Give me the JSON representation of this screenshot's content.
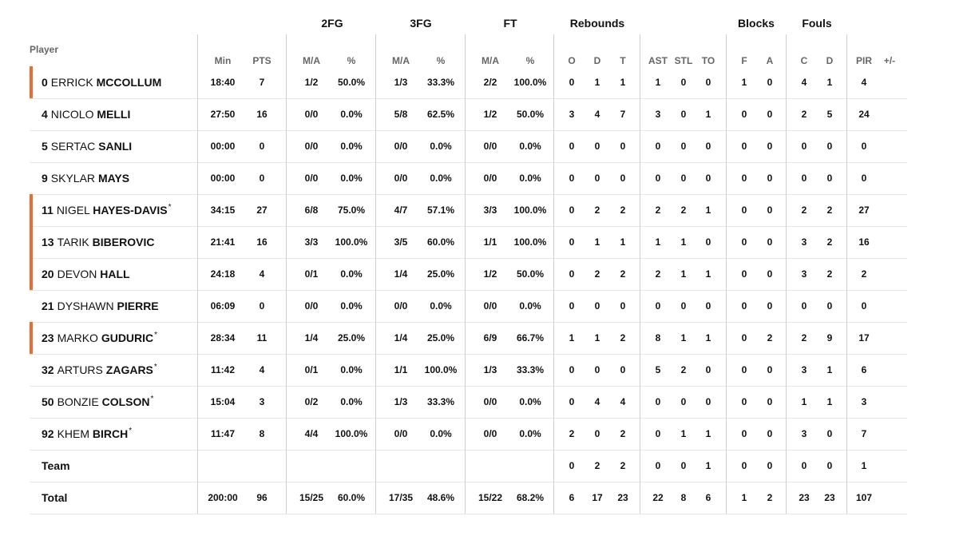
{
  "headers": {
    "player": "Player",
    "groups": [
      "2FG",
      "3FG",
      "FT",
      "Rebounds",
      "Blocks",
      "Fouls"
    ],
    "columns": [
      "Min",
      "PTS",
      "M/A",
      "%",
      "M/A",
      "%",
      "M/A",
      "%",
      "O",
      "D",
      "T",
      "AST",
      "STL",
      "TO",
      "F",
      "A",
      "C",
      "D",
      "PIR",
      "+/-"
    ]
  },
  "rows": [
    {
      "starter": true,
      "number": "0",
      "first": "ERRICK",
      "last": "MCCOLLUM",
      "star": "",
      "stats": [
        "18:40",
        "7",
        "1/2",
        "50.0%",
        "1/3",
        "33.3%",
        "2/2",
        "100.0%",
        "0",
        "1",
        "1",
        "1",
        "0",
        "0",
        "1",
        "0",
        "4",
        "1",
        "4",
        ""
      ]
    },
    {
      "starter": false,
      "number": "4",
      "first": "NICOLO",
      "last": "MELLI",
      "star": "",
      "stats": [
        "27:50",
        "16",
        "0/0",
        "0.0%",
        "5/8",
        "62.5%",
        "1/2",
        "50.0%",
        "3",
        "4",
        "7",
        "3",
        "0",
        "1",
        "0",
        "0",
        "2",
        "5",
        "24",
        ""
      ]
    },
    {
      "starter": false,
      "number": "5",
      "first": "SERTAC",
      "last": "SANLI",
      "star": "",
      "stats": [
        "00:00",
        "0",
        "0/0",
        "0.0%",
        "0/0",
        "0.0%",
        "0/0",
        "0.0%",
        "0",
        "0",
        "0",
        "0",
        "0",
        "0",
        "0",
        "0",
        "0",
        "0",
        "0",
        ""
      ]
    },
    {
      "starter": false,
      "number": "9",
      "first": "SKYLAR",
      "last": "MAYS",
      "star": "",
      "stats": [
        "00:00",
        "0",
        "0/0",
        "0.0%",
        "0/0",
        "0.0%",
        "0/0",
        "0.0%",
        "0",
        "0",
        "0",
        "0",
        "0",
        "0",
        "0",
        "0",
        "0",
        "0",
        "0",
        ""
      ]
    },
    {
      "starter": true,
      "number": "11",
      "first": "NIGEL",
      "last": "HAYES-DAVIS",
      "star": "*",
      "stats": [
        "34:15",
        "27",
        "6/8",
        "75.0%",
        "4/7",
        "57.1%",
        "3/3",
        "100.0%",
        "0",
        "2",
        "2",
        "2",
        "2",
        "1",
        "0",
        "0",
        "2",
        "2",
        "27",
        ""
      ]
    },
    {
      "starter": true,
      "number": "13",
      "first": "TARIK",
      "last": "BIBEROVIC",
      "star": "",
      "stats": [
        "21:41",
        "16",
        "3/3",
        "100.0%",
        "3/5",
        "60.0%",
        "1/1",
        "100.0%",
        "0",
        "1",
        "1",
        "1",
        "1",
        "0",
        "0",
        "0",
        "3",
        "2",
        "16",
        ""
      ]
    },
    {
      "starter": true,
      "number": "20",
      "first": "DEVON",
      "last": "HALL",
      "star": "",
      "stats": [
        "24:18",
        "4",
        "0/1",
        "0.0%",
        "1/4",
        "25.0%",
        "1/2",
        "50.0%",
        "0",
        "2",
        "2",
        "2",
        "1",
        "1",
        "0",
        "0",
        "3",
        "2",
        "2",
        ""
      ]
    },
    {
      "starter": false,
      "number": "21",
      "first": "DYSHAWN",
      "last": "PIERRE",
      "star": "",
      "stats": [
        "06:09",
        "0",
        "0/0",
        "0.0%",
        "0/0",
        "0.0%",
        "0/0",
        "0.0%",
        "0",
        "0",
        "0",
        "0",
        "0",
        "0",
        "0",
        "0",
        "0",
        "0",
        "0",
        ""
      ]
    },
    {
      "starter": true,
      "number": "23",
      "first": "MARKO",
      "last": "GUDURIC",
      "star": "*",
      "stats": [
        "28:34",
        "11",
        "1/4",
        "25.0%",
        "1/4",
        "25.0%",
        "6/9",
        "66.7%",
        "1",
        "1",
        "2",
        "8",
        "1",
        "1",
        "0",
        "2",
        "2",
        "9",
        "17",
        ""
      ]
    },
    {
      "starter": false,
      "number": "32",
      "first": "ARTURS",
      "last": "ZAGARS",
      "star": "*",
      "stats": [
        "11:42",
        "4",
        "0/1",
        "0.0%",
        "1/1",
        "100.0%",
        "1/3",
        "33.3%",
        "0",
        "0",
        "0",
        "5",
        "2",
        "0",
        "0",
        "0",
        "3",
        "1",
        "6",
        ""
      ]
    },
    {
      "starter": false,
      "number": "50",
      "first": "BONZIE",
      "last": "COLSON",
      "star": "*",
      "stats": [
        "15:04",
        "3",
        "0/2",
        "0.0%",
        "1/3",
        "33.3%",
        "0/0",
        "0.0%",
        "0",
        "4",
        "4",
        "0",
        "0",
        "0",
        "0",
        "0",
        "1",
        "1",
        "3",
        ""
      ]
    },
    {
      "starter": false,
      "number": "92",
      "first": "KHEM",
      "last": "BIRCH",
      "star": "*",
      "stats": [
        "11:47",
        "8",
        "4/4",
        "100.0%",
        "0/0",
        "0.0%",
        "0/0",
        "0.0%",
        "2",
        "0",
        "2",
        "0",
        "1",
        "1",
        "0",
        "0",
        "3",
        "0",
        "7",
        ""
      ]
    }
  ],
  "team": {
    "label": "Team",
    "stats": [
      "",
      "",
      "",
      "",
      "",
      "",
      "",
      "",
      "0",
      "2",
      "2",
      "0",
      "0",
      "1",
      "0",
      "0",
      "0",
      "0",
      "1",
      ""
    ]
  },
  "total": {
    "label": "Total",
    "stats": [
      "200:00",
      "96",
      "15/25",
      "60.0%",
      "17/35",
      "48.6%",
      "15/22",
      "68.2%",
      "6",
      "17",
      "23",
      "22",
      "8",
      "6",
      "1",
      "2",
      "23",
      "23",
      "107",
      ""
    ]
  },
  "colors": {
    "starter_bar": "#ef6a33",
    "divider": "#cfcfcf",
    "row_border": "#e6e6e6",
    "header_text": "#666666"
  }
}
